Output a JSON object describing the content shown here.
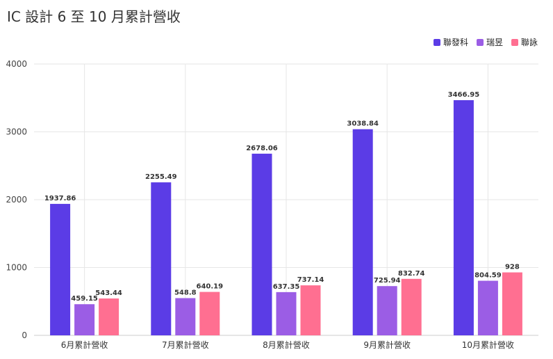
{
  "chart_data": {
    "type": "bar",
    "title": "IC 設計 6 至 10 月累計營收",
    "categories": [
      "6月累計營收",
      "7月累計營收",
      "8月累計營收",
      "9月累計營收",
      "10月累計營收"
    ],
    "series": [
      {
        "name": "聯發科",
        "color": "#5b3ce6",
        "values": [
          1937.86,
          2255.49,
          2678.06,
          3038.84,
          3466.95
        ]
      },
      {
        "name": "瑞昱",
        "color": "#9b5de5",
        "values": [
          459.15,
          548.8,
          637.35,
          725.94,
          804.59
        ]
      },
      {
        "name": "聯詠",
        "color": "#ff6f91",
        "values": [
          543.44,
          640.19,
          737.14,
          832.74,
          928
        ]
      }
    ],
    "ylim": [
      0,
      4000
    ],
    "yticks": [
      0,
      1000,
      2000,
      3000,
      4000
    ],
    "grid": true,
    "legend_position": "top-right"
  }
}
